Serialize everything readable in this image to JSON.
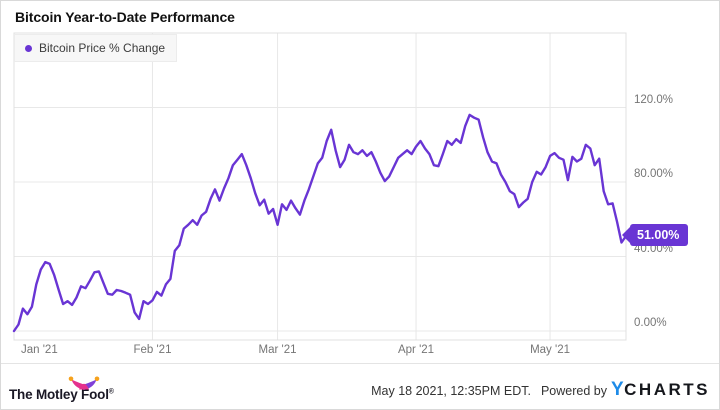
{
  "header": {
    "title": "Bitcoin Year-to-Date Performance"
  },
  "legend": {
    "series_label": "Bitcoin Price % Change"
  },
  "badge": {
    "label": "51.00%"
  },
  "colors": {
    "line": "#6935d4",
    "grid": "#e8e8e8",
    "frame": "#e0e0e0",
    "axis_label": "#757575",
    "ycharts_blue": "#1e8be8",
    "motley_pink": "#e5318d",
    "motley_purple": "#8040d8",
    "motley_orange": "#f6a21d"
  },
  "chart_data": {
    "type": "line",
    "title": "Bitcoin Year-to-Date Performance",
    "series_name": "Bitcoin Price % Change",
    "x_unit": "days since Jan 1 2021, one point per day",
    "x_range_labels": [
      "Jan 1 2021",
      "May 18 2021"
    ],
    "grid": true,
    "legend_position": "top-left",
    "ylim": [
      -5,
      160
    ],
    "y_ticks": [
      {
        "value": 0,
        "label": "0.00%"
      },
      {
        "value": 40,
        "label": "40.00%"
      },
      {
        "value": 80,
        "label": "80.00%"
      },
      {
        "value": 120,
        "label": "120.0%"
      }
    ],
    "x_ticks": [
      {
        "day": 0,
        "label": "Jan '21"
      },
      {
        "day": 31,
        "label": "Feb '21"
      },
      {
        "day": 59,
        "label": "Mar '21"
      },
      {
        "day": 90,
        "label": "Apr '21"
      },
      {
        "day": 120,
        "label": "May '21"
      }
    ],
    "last_value_label": "51.00%",
    "values_pct_change": [
      0,
      3.5,
      12,
      9,
      13,
      25,
      33,
      37,
      36,
      30,
      22,
      14.5,
      16,
      14,
      18,
      24,
      23,
      27,
      31.5,
      32,
      26,
      20,
      19.5,
      22,
      21.5,
      20.5,
      19.5,
      10,
      6.5,
      16,
      14.5,
      16.5,
      21,
      19,
      25,
      28,
      43,
      46,
      55,
      57,
      59.5,
      57,
      62,
      64,
      71,
      76,
      70,
      76.5,
      82,
      89,
      92,
      95,
      89,
      82,
      74,
      67.5,
      70.5,
      63,
      65.5,
      57,
      68,
      65,
      70,
      66,
      62.5,
      70,
      76,
      83,
      90,
      93,
      102,
      108,
      97,
      88,
      92,
      100,
      96,
      95,
      97,
      94,
      96,
      91,
      85,
      80.5,
      83,
      88,
      93,
      95,
      97,
      95,
      99,
      102,
      98,
      95,
      89,
      88.5,
      95,
      102,
      100,
      103,
      101,
      110,
      116,
      114.5,
      113.5,
      104,
      96,
      91,
      90,
      84,
      80,
      75,
      73.5,
      66.5,
      69,
      71,
      80,
      85.5,
      84,
      88,
      94,
      95.5,
      93,
      92,
      81,
      93.5,
      91,
      92.5,
      100,
      98,
      89,
      92.5,
      75,
      68,
      68.5,
      58.5,
      47.5,
      51
    ]
  },
  "footer": {
    "brand": "The Motley Fool",
    "reg": "®",
    "timestamp": "May 18 2021, 12:35PM EDT.",
    "powered_by": "Powered by",
    "ycharts_y": "Y",
    "ycharts_rest": "CHARTS"
  }
}
